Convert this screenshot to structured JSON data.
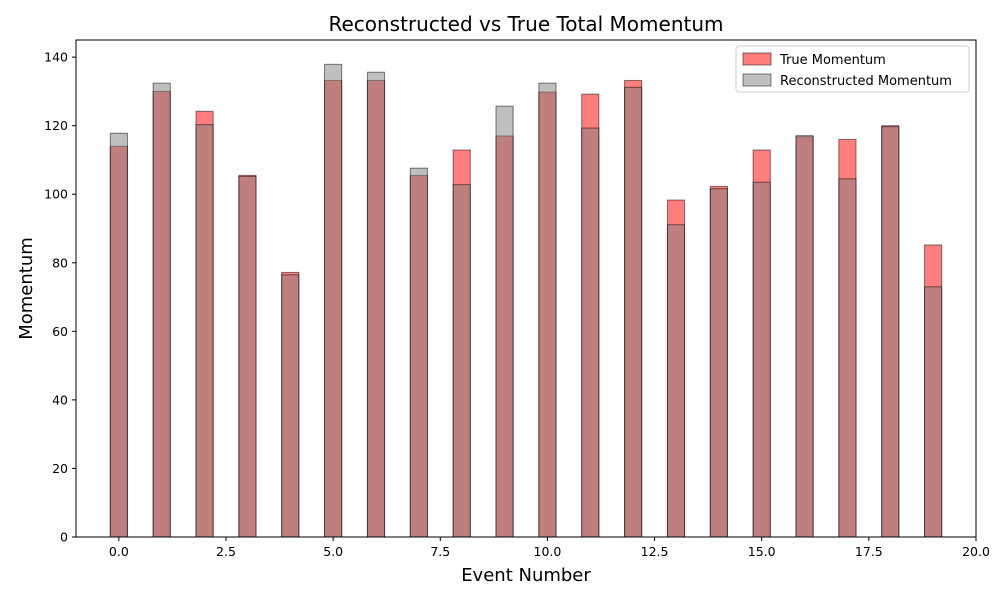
{
  "chart_data": {
    "type": "bar",
    "title": "Reconstructed vs True Total Momentum",
    "xlabel": "Event Number",
    "ylabel": "Momentum",
    "x": [
      0,
      1,
      2,
      3,
      4,
      5,
      6,
      7,
      8,
      9,
      10,
      11,
      12,
      13,
      14,
      15,
      16,
      17,
      18,
      19
    ],
    "series": [
      {
        "name": "True Momentum",
        "color": "#ff0000",
        "opacity": 0.5,
        "values": [
          114.0,
          130.0,
          124.2,
          105.5,
          77.2,
          133.2,
          133.2,
          105.5,
          112.9,
          117.0,
          129.8,
          129.2,
          133.2,
          98.3,
          102.3,
          112.9,
          116.8,
          116.0,
          120.0,
          85.2
        ]
      },
      {
        "name": "Reconstructed Momentum",
        "color": "#808080",
        "opacity": 0.5,
        "values": [
          117.8,
          132.4,
          120.3,
          105.2,
          76.5,
          137.9,
          135.6,
          107.6,
          102.8,
          125.7,
          132.4,
          119.3,
          131.2,
          91.1,
          101.6,
          103.5,
          117.1,
          104.5,
          119.7,
          73.0
        ]
      }
    ],
    "xlim": [
      -1.0,
      20.0
    ],
    "ylim": [
      0,
      145
    ],
    "xticks": [
      0.0,
      2.5,
      5.0,
      7.5,
      10.0,
      12.5,
      15.0,
      17.5,
      20.0
    ],
    "xtick_labels": [
      "0.0",
      "2.5",
      "5.0",
      "7.5",
      "10.0",
      "12.5",
      "15.0",
      "17.5",
      "20.0"
    ],
    "yticks": [
      0,
      20,
      40,
      60,
      80,
      100,
      120,
      140
    ],
    "ytick_labels": [
      "0",
      "20",
      "40",
      "60",
      "80",
      "100",
      "120",
      "140"
    ],
    "bar_width": 0.4,
    "grid": false,
    "legend_position": "top-right"
  }
}
